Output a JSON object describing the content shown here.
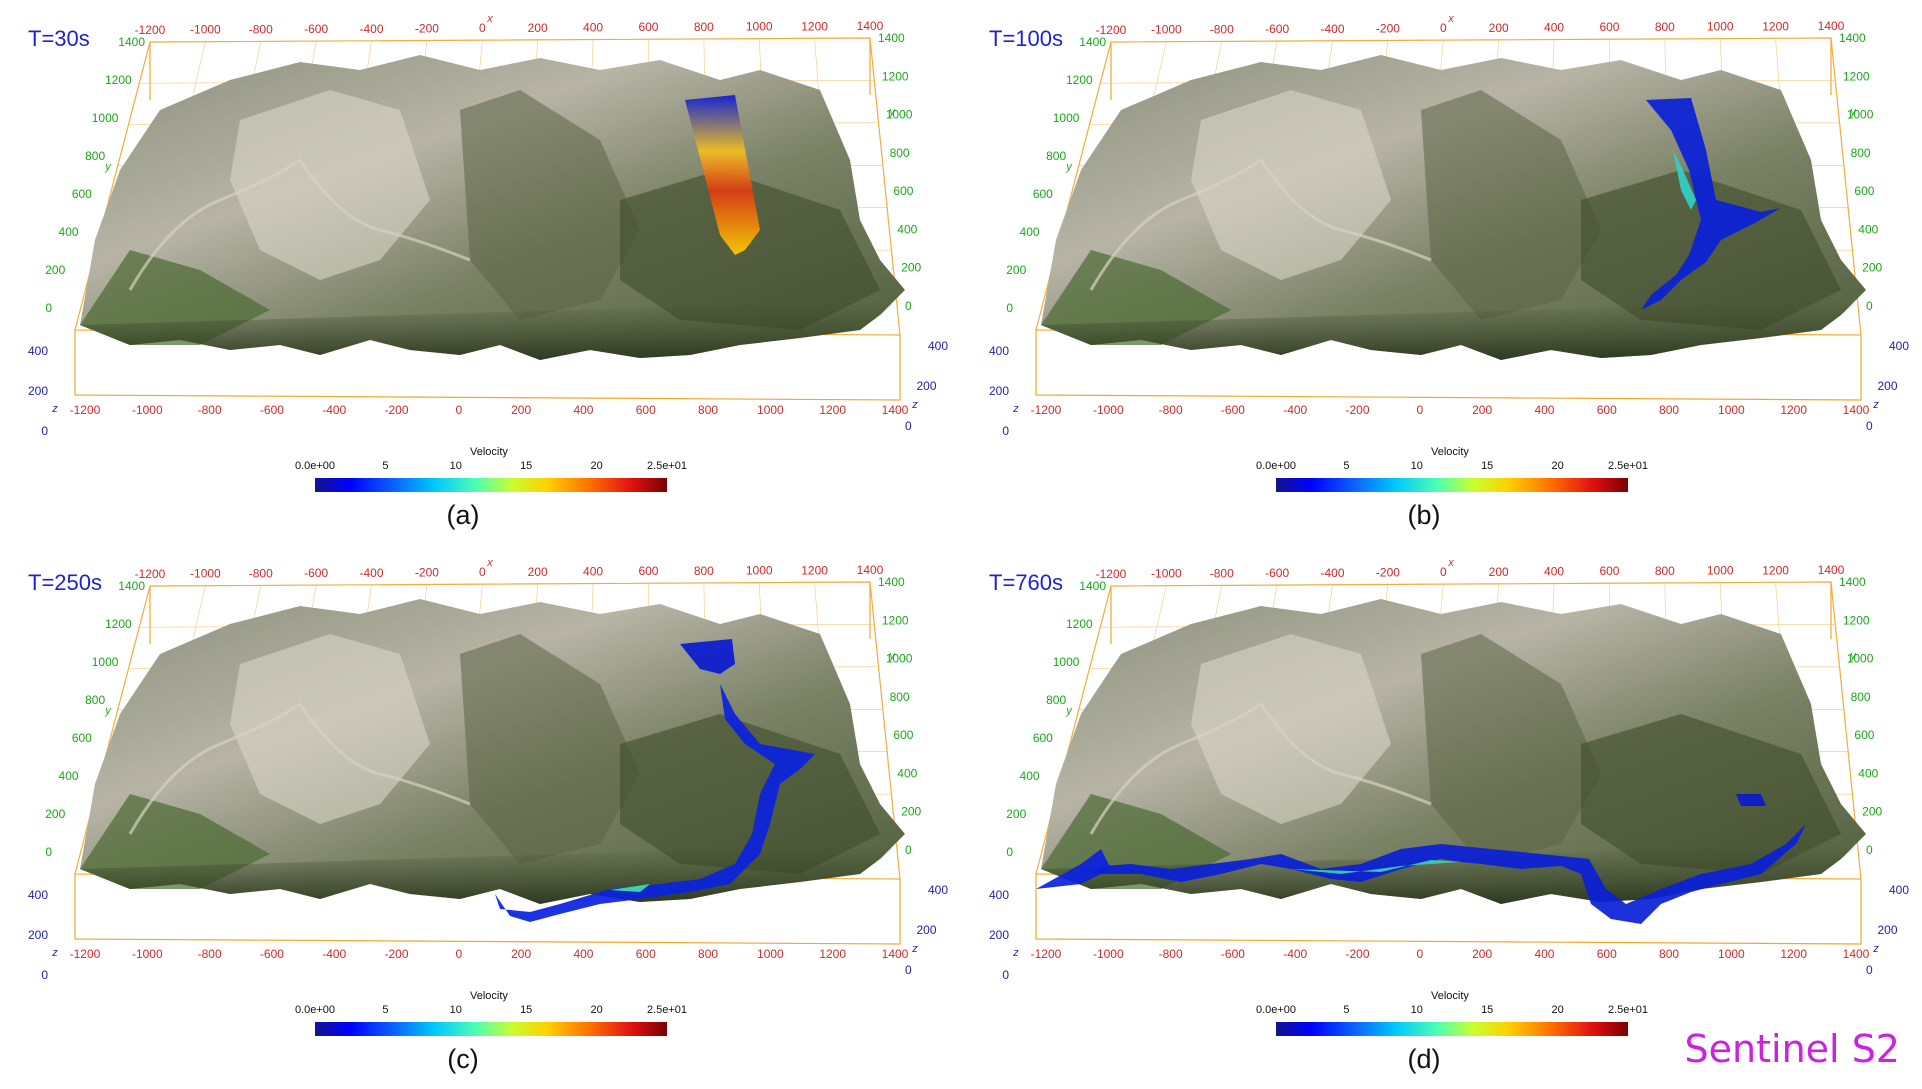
{
  "axis_ticks": {
    "x_top": [
      "-1200",
      "-1000",
      "-800",
      "-600",
      "-400",
      "-200",
      "0",
      "200",
      "400",
      "600",
      "800",
      "1000",
      "1200",
      "1400"
    ],
    "x_bottom": [
      "-1200",
      "-1000",
      "-800",
      "-600",
      "-400",
      "-200",
      "0",
      "200",
      "400",
      "600",
      "800",
      "1000",
      "1200",
      "1400"
    ],
    "y_left": [
      "1400",
      "1200",
      "1000",
      "800",
      "600",
      "400",
      "200",
      "0"
    ],
    "y_right": [
      "1400",
      "1200",
      "1000",
      "800",
      "600",
      "400",
      "200",
      "0"
    ],
    "z_left": [
      "400",
      "200",
      "0"
    ],
    "z_right": [
      "400",
      "200",
      "0"
    ]
  },
  "axis_titles": {
    "x": "x",
    "y": "y",
    "z": "z",
    "velocity": "Velocity"
  },
  "colorbar": {
    "ticks": [
      "0.0e+00",
      "5",
      "10",
      "15",
      "20",
      "2.5e+01"
    ],
    "values": [
      0,
      5,
      10,
      15,
      20,
      25
    ]
  },
  "panels": [
    {
      "time": "T=30s",
      "caption": "(a)"
    },
    {
      "time": "T=100s",
      "caption": "(b)"
    },
    {
      "time": "T=250s",
      "caption": "(c)"
    },
    {
      "time": "T=760s",
      "caption": "(d)"
    }
  ],
  "watermark": "Sentinel S2",
  "colors": {
    "axis_box": "#f2a72c",
    "x_ticks": "#cc2b2b",
    "y_ticks": "#1aa81a",
    "z_ticks": "#2222aa",
    "flow_low": "#0a14d0",
    "flow_high": "#d81e10"
  }
}
